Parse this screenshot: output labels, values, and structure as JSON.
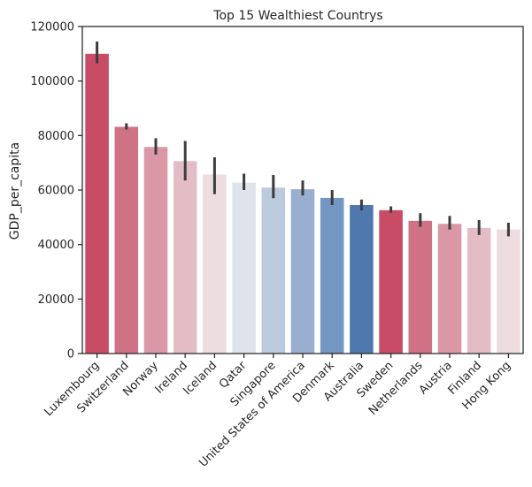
{
  "chart_data": {
    "type": "bar",
    "title": "Top 15 Wealthiest Countrys",
    "xlabel": "",
    "ylabel": "GDP_per_capita",
    "ylim": [
      0,
      120000
    ],
    "yticks": [
      0,
      20000,
      40000,
      60000,
      80000,
      100000,
      120000
    ],
    "grid": false,
    "categories": [
      "Luxembourg",
      "Switzerland",
      "Norway",
      "Ireland",
      "Iceland",
      "Qatar",
      "Singapore",
      "United States of America",
      "Denmark",
      "Australia",
      "Sweden",
      "Netherlands",
      "Austria",
      "Finland",
      "Hong Kong"
    ],
    "values": [
      110000,
      83200,
      75800,
      70600,
      65700,
      62700,
      60900,
      60300,
      57100,
      54500,
      52600,
      48700,
      47600,
      46100,
      45500
    ],
    "error_low": [
      106500,
      82200,
      73000,
      63500,
      58500,
      60000,
      57000,
      58000,
      54500,
      52500,
      51700,
      46500,
      45500,
      43500,
      43000
    ],
    "error_high": [
      114500,
      84500,
      79000,
      78000,
      72000,
      66000,
      65500,
      63500,
      60000,
      56500,
      54000,
      51500,
      50500,
      49000,
      48000
    ],
    "colors": [
      "#c94c66",
      "#cf7285",
      "#da98a6",
      "#e4bcc5",
      "#eddde1",
      "#dfe3eb",
      "#bccadd",
      "#98afcf",
      "#7496c2",
      "#4f78ae",
      "#c94c66",
      "#cf7285",
      "#da98a6",
      "#e4bcc5",
      "#eddde1"
    ],
    "error_color": "#3c3c3c"
  }
}
